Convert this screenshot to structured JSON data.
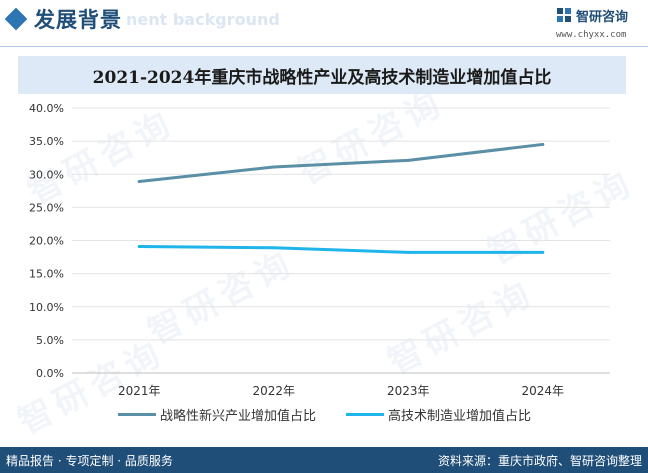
{
  "header": {
    "title": "发展背景",
    "watermark": "nent background",
    "logo_name": "智研咨询",
    "logo_url": "www.chyxx.com"
  },
  "watermark_text": "智研咨询",
  "footer": {
    "left": "精品报告 · 专项定制 · 品质服务",
    "right": "资料来源：重庆市政府、智研咨询整理"
  },
  "colors": {
    "series1": "#5b8fa6",
    "series2": "#1fb4ea",
    "brand": "#1f4e79"
  },
  "chart_data": {
    "type": "line",
    "title": "2021-2024年重庆市战略性产业及高技术制造业增加值占比",
    "categories": [
      "2021年",
      "2022年",
      "2023年",
      "2024年"
    ],
    "ylim": [
      0,
      40
    ],
    "yticks": [
      "0.0%",
      "5.0%",
      "10.0%",
      "15.0%",
      "20.0%",
      "25.0%",
      "30.0%",
      "35.0%",
      "40.0%"
    ],
    "ytick_values": [
      0,
      5,
      10,
      15,
      20,
      25,
      30,
      35,
      40
    ],
    "grid": true,
    "legend_position": "bottom",
    "series": [
      {
        "name": "战略性新兴产业增加值占比",
        "values": [
          28.9,
          31.1,
          32.1,
          34.5
        ]
      },
      {
        "name": "高技术制造业增加值占比",
        "values": [
          19.1,
          18.9,
          18.2,
          18.2
        ]
      }
    ]
  }
}
